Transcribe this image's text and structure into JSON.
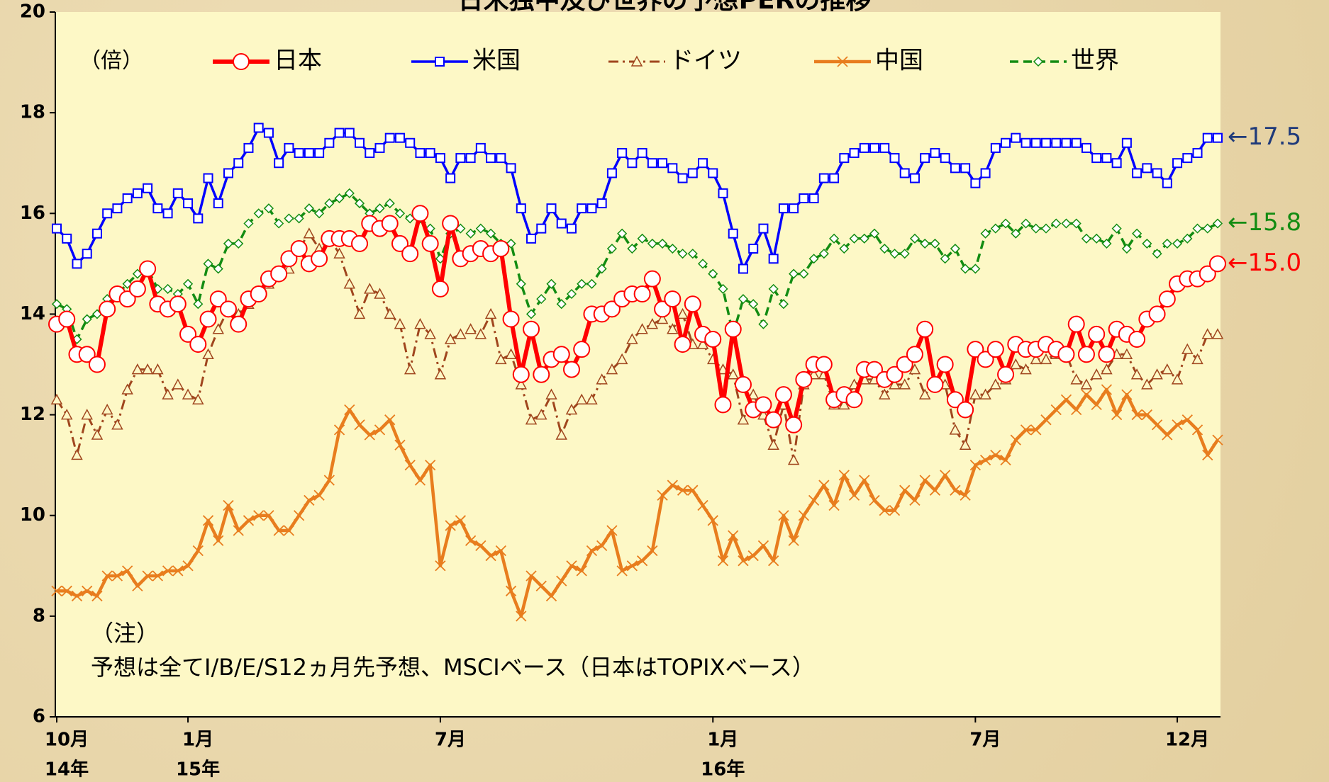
{
  "chart_data": {
    "type": "line",
    "title": "日米独中及び世界の予想PERの推移",
    "y_unit": "（倍）",
    "note": [
      "（注）",
      "予想は全てI/B/E/S12ヵ月先予想、MSCIベース（日本はTOPIXベース）"
    ],
    "ylim": [
      6,
      20
    ],
    "yticks": [
      6,
      8,
      10,
      12,
      14,
      16,
      18,
      20
    ],
    "legend_position": "top",
    "categories": [
      "10月",
      null,
      null,
      null,
      null,
      null,
      null,
      null,
      null,
      null,
      null,
      null,
      null,
      "1月",
      null,
      null,
      null,
      null,
      null,
      null,
      null,
      null,
      null,
      null,
      null,
      null,
      null,
      null,
      null,
      null,
      null,
      null,
      null,
      null,
      null,
      null,
      null,
      null,
      "7月",
      null,
      null,
      null,
      null,
      null,
      null,
      null,
      null,
      null,
      null,
      null,
      null,
      null,
      null,
      null,
      null,
      null,
      null,
      null,
      null,
      null,
      null,
      null,
      null,
      null,
      null,
      "1月",
      null,
      null,
      null,
      null,
      null,
      null,
      null,
      null,
      null,
      null,
      null,
      null,
      null,
      null,
      null,
      null,
      null,
      null,
      null,
      null,
      null,
      null,
      null,
      null,
      null,
      "7月",
      null,
      null,
      null,
      null,
      null,
      null,
      null,
      null,
      null,
      null,
      null,
      null,
      null,
      null,
      null,
      null,
      null,
      null,
      null,
      "12月",
      null,
      null,
      null,
      null
    ],
    "years": [
      "14年",
      null,
      null,
      null,
      null,
      null,
      null,
      null,
      null,
      null,
      null,
      null,
      null,
      "15年",
      null,
      null,
      null,
      null,
      null,
      null,
      null,
      null,
      null,
      null,
      null,
      null,
      null,
      null,
      null,
      null,
      null,
      null,
      null,
      null,
      null,
      null,
      null,
      null,
      null,
      null,
      null,
      null,
      null,
      null,
      null,
      null,
      null,
      null,
      null,
      null,
      null,
      null,
      null,
      null,
      null,
      null,
      null,
      null,
      null,
      null,
      null,
      null,
      null,
      null,
      null,
      "16年",
      null,
      null,
      null,
      null,
      null,
      null,
      null,
      null,
      null,
      null,
      null,
      null,
      null,
      null,
      null,
      null,
      null,
      null,
      null,
      null,
      null,
      null,
      null,
      null,
      null,
      null,
      null,
      null,
      null,
      null,
      null,
      null,
      null,
      null,
      null,
      null,
      null,
      null,
      null,
      null,
      null,
      null,
      null,
      null,
      null,
      null,
      null,
      null,
      null,
      null
    ],
    "series": [
      {
        "name": "日本",
        "color": "#ff0000",
        "marker": "circle",
        "dash": "solid",
        "line_width": 6,
        "end_label": "←15.0",
        "end_label_color": "#ff0000",
        "values": [
          13.8,
          13.9,
          13.2,
          13.2,
          13.0,
          14.1,
          14.4,
          14.3,
          14.5,
          14.9,
          14.2,
          14.1,
          14.2,
          13.6,
          13.4,
          13.9,
          14.3,
          14.1,
          13.8,
          14.3,
          14.4,
          14.7,
          14.8,
          15.1,
          15.3,
          15.0,
          15.1,
          15.5,
          15.5,
          15.5,
          15.4,
          15.8,
          15.7,
          15.8,
          15.4,
          15.2,
          16.0,
          15.4,
          14.5,
          15.8,
          15.1,
          15.2,
          15.3,
          15.2,
          15.3,
          13.9,
          12.8,
          13.7,
          12.8,
          13.1,
          13.2,
          12.9,
          13.3,
          14.0,
          14.0,
          14.1,
          14.3,
          14.4,
          14.4,
          14.7,
          14.1,
          14.3,
          13.4,
          14.2,
          13.6,
          13.5,
          12.2,
          13.7,
          12.6,
          12.1,
          12.2,
          11.9,
          12.4,
          11.8,
          12.7,
          13.0,
          13.0,
          12.3,
          12.4,
          12.3,
          12.9,
          12.9,
          12.7,
          12.8,
          13.0,
          13.2,
          13.7,
          12.6,
          13.0,
          12.3,
          12.1,
          13.3,
          13.1,
          13.3,
          12.8,
          13.4,
          13.3,
          13.3,
          13.4,
          13.3,
          13.2,
          13.8,
          13.2,
          13.6,
          13.2,
          13.7,
          13.6,
          13.5,
          13.9,
          14.0,
          14.3,
          14.6,
          14.7,
          14.7,
          14.8,
          15.0
        ]
      },
      {
        "name": "米国",
        "color": "#0000ff",
        "marker": "square",
        "dash": "solid",
        "line_width": 3.5,
        "end_label": "←17.5",
        "end_label_color": "#1f3a7a",
        "values": [
          15.7,
          15.5,
          15.0,
          15.2,
          15.6,
          16.0,
          16.1,
          16.3,
          16.4,
          16.5,
          16.1,
          16.0,
          16.4,
          16.2,
          15.9,
          16.7,
          16.2,
          16.8,
          17.0,
          17.3,
          17.7,
          17.6,
          17.0,
          17.3,
          17.2,
          17.2,
          17.2,
          17.4,
          17.6,
          17.6,
          17.4,
          17.2,
          17.3,
          17.5,
          17.5,
          17.4,
          17.2,
          17.2,
          17.1,
          16.7,
          17.1,
          17.1,
          17.3,
          17.1,
          17.1,
          16.9,
          16.1,
          15.5,
          15.7,
          16.1,
          15.8,
          15.7,
          16.1,
          16.1,
          16.2,
          16.8,
          17.2,
          17.0,
          17.2,
          17.0,
          17.0,
          16.9,
          16.7,
          16.8,
          17.0,
          16.8,
          16.4,
          15.6,
          14.9,
          15.3,
          15.7,
          15.1,
          16.1,
          16.1,
          16.3,
          16.3,
          16.7,
          16.7,
          17.1,
          17.2,
          17.3,
          17.3,
          17.3,
          17.1,
          16.8,
          16.7,
          17.1,
          17.2,
          17.1,
          16.9,
          16.9,
          16.6,
          16.8,
          17.3,
          17.4,
          17.5,
          17.4,
          17.4,
          17.4,
          17.4,
          17.4,
          17.4,
          17.3,
          17.1,
          17.1,
          17.0,
          17.4,
          16.8,
          16.9,
          16.8,
          16.6,
          17.0,
          17.1,
          17.2,
          17.5,
          17.5
        ]
      },
      {
        "name": "ドイツ",
        "color": "#a0461e",
        "marker": "triangle",
        "dash": "dashdot",
        "line_width": 3,
        "values": [
          12.3,
          12.0,
          11.2,
          12.0,
          11.6,
          12.1,
          11.8,
          12.5,
          12.9,
          12.9,
          12.9,
          12.4,
          12.6,
          12.4,
          12.3,
          13.2,
          13.7,
          14.1,
          14.0,
          14.2,
          14.4,
          14.6,
          14.8,
          14.9,
          15.3,
          15.6,
          15.3,
          15.5,
          15.2,
          14.6,
          14.0,
          14.5,
          14.4,
          14.0,
          13.8,
          12.9,
          13.8,
          13.6,
          12.8,
          13.5,
          13.6,
          13.7,
          13.6,
          14.0,
          13.1,
          13.2,
          12.6,
          11.9,
          12.0,
          12.4,
          11.6,
          12.1,
          12.3,
          12.3,
          12.7,
          12.9,
          13.1,
          13.5,
          13.7,
          13.8,
          13.9,
          13.7,
          14.0,
          13.4,
          13.4,
          13.1,
          12.9,
          12.8,
          11.9,
          12.4,
          12.0,
          11.4,
          12.2,
          11.1,
          12.6,
          12.8,
          12.8,
          12.2,
          12.2,
          12.6,
          12.7,
          12.7,
          12.4,
          12.6,
          12.6,
          12.9,
          12.4,
          12.6,
          12.6,
          11.7,
          11.4,
          12.4,
          12.4,
          12.6,
          12.7,
          13.0,
          12.9,
          13.1,
          13.1,
          13.2,
          13.2,
          12.7,
          12.6,
          12.8,
          12.9,
          13.2,
          13.2,
          12.8,
          12.6,
          12.8,
          12.9,
          12.7,
          13.3,
          13.1,
          13.6,
          13.6
        ]
      },
      {
        "name": "中国",
        "color": "#e87d1e",
        "marker": "x",
        "dash": "solid",
        "line_width": 4.5,
        "values": [
          8.5,
          8.5,
          8.4,
          8.5,
          8.4,
          8.8,
          8.8,
          8.9,
          8.6,
          8.8,
          8.8,
          8.9,
          8.9,
          9.0,
          9.3,
          9.9,
          9.5,
          10.2,
          9.7,
          9.9,
          10.0,
          10.0,
          9.7,
          9.7,
          10.0,
          10.3,
          10.4,
          10.7,
          11.7,
          12.1,
          11.8,
          11.6,
          11.7,
          11.9,
          11.4,
          11.0,
          10.7,
          11.0,
          9.0,
          9.8,
          9.9,
          9.5,
          9.4,
          9.2,
          9.3,
          8.5,
          8.0,
          8.8,
          8.6,
          8.4,
          8.7,
          9.0,
          8.9,
          9.3,
          9.4,
          9.7,
          8.9,
          9.0,
          9.1,
          9.3,
          10.4,
          10.6,
          10.5,
          10.5,
          10.2,
          9.9,
          9.1,
          9.6,
          9.1,
          9.2,
          9.4,
          9.1,
          10.0,
          9.5,
          10.0,
          10.3,
          10.6,
          10.2,
          10.8,
          10.4,
          10.7,
          10.3,
          10.1,
          10.1,
          10.5,
          10.3,
          10.7,
          10.5,
          10.8,
          10.5,
          10.4,
          11.0,
          11.1,
          11.2,
          11.1,
          11.5,
          11.7,
          11.7,
          11.9,
          12.1,
          12.3,
          12.1,
          12.4,
          12.2,
          12.5,
          12.0,
          12.4,
          12.0,
          12.0,
          11.8,
          11.6,
          11.8,
          11.9,
          11.7,
          11.2,
          11.5
        ]
      },
      {
        "name": "世界",
        "color": "#128c12",
        "marker": "diamond",
        "dash": "dash",
        "line_width": 3.5,
        "end_label": "←15.8",
        "end_label_color": "#128c12",
        "values": [
          14.2,
          14.1,
          13.5,
          13.9,
          14.0,
          14.3,
          14.4,
          14.6,
          14.8,
          14.9,
          14.5,
          14.5,
          14.4,
          14.6,
          14.2,
          15.0,
          14.9,
          15.4,
          15.4,
          15.8,
          16.0,
          16.1,
          15.8,
          15.9,
          15.9,
          16.1,
          16.0,
          16.2,
          16.3,
          16.4,
          16.2,
          16.0,
          16.1,
          16.2,
          16.0,
          15.9,
          15.9,
          15.7,
          15.1,
          15.6,
          15.7,
          15.6,
          15.7,
          15.6,
          15.4,
          15.4,
          14.6,
          14.0,
          14.3,
          14.6,
          14.2,
          14.4,
          14.6,
          14.6,
          14.9,
          15.3,
          15.6,
          15.3,
          15.5,
          15.4,
          15.4,
          15.3,
          15.2,
          15.2,
          15.0,
          14.8,
          14.5,
          13.6,
          14.3,
          14.2,
          13.8,
          14.5,
          14.2,
          14.8,
          14.8,
          15.1,
          15.2,
          15.5,
          15.3,
          15.5,
          15.5,
          15.6,
          15.3,
          15.2,
          15.2,
          15.5,
          15.4,
          15.4,
          15.1,
          15.3,
          14.9,
          14.9,
          15.6,
          15.7,
          15.8,
          15.6,
          15.8,
          15.7,
          15.7,
          15.8,
          15.8,
          15.8,
          15.5,
          15.5,
          15.4,
          15.7,
          15.3,
          15.6,
          15.4,
          15.2,
          15.4,
          15.4,
          15.5,
          15.7,
          15.7,
          15.8
        ]
      }
    ]
  }
}
